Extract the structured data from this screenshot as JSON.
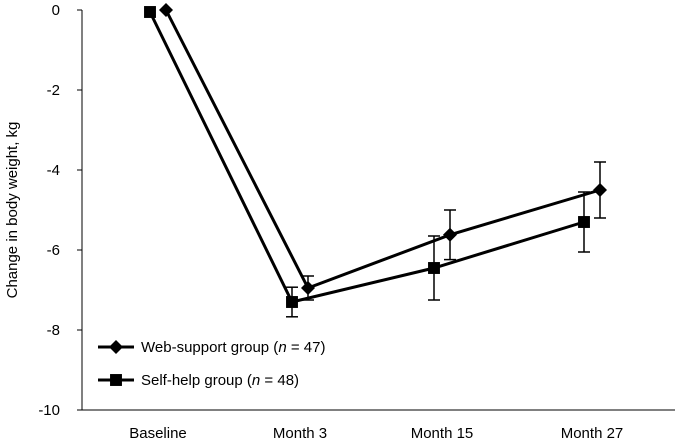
{
  "chart_data": {
    "type": "line",
    "ylabel": "Change in body weight, kg",
    "categories": [
      "Baseline",
      "Month 3",
      "Month 15",
      "Month 27"
    ],
    "ylim": [
      -10,
      0
    ],
    "yticks": [
      0,
      -2,
      -4,
      -6,
      -8,
      -10
    ],
    "grid": false,
    "legend_position": "bottom-left",
    "series": [
      {
        "name": "Web-support group",
        "n_label": "n",
        "n_value": "= 47)",
        "marker": "diamond",
        "color": "#000000",
        "values": [
          0,
          -6.95,
          -5.62,
          -4.5
        ],
        "error": [
          0,
          0.3,
          0.62,
          0.7
        ]
      },
      {
        "name": "Self-help group",
        "n_label": "n",
        "n_value": "= 48)",
        "marker": "square",
        "color": "#000000",
        "values": [
          -0.05,
          -7.3,
          -6.45,
          -5.3
        ],
        "error": [
          0,
          0.37,
          0.8,
          0.75
        ]
      }
    ]
  }
}
